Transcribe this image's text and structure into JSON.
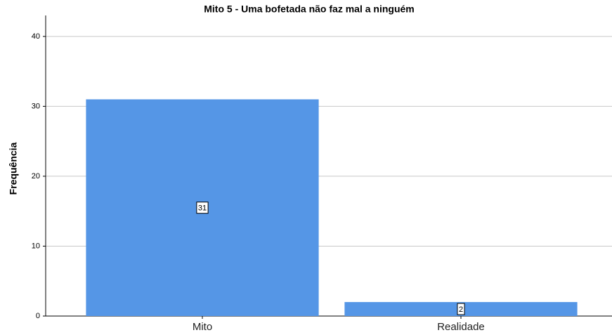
{
  "chart_data": {
    "type": "bar",
    "title": "Mito 5 - Uma bofetada não faz mal a ninguém",
    "y_label": "Frequência",
    "categories": [
      "Mito",
      "Realidade"
    ],
    "values": [
      31,
      2
    ],
    "color": "#5596e6",
    "ylim": [
      0,
      43
    ],
    "yticks": [
      0,
      10,
      20,
      30,
      40
    ],
    "grid": true
  }
}
